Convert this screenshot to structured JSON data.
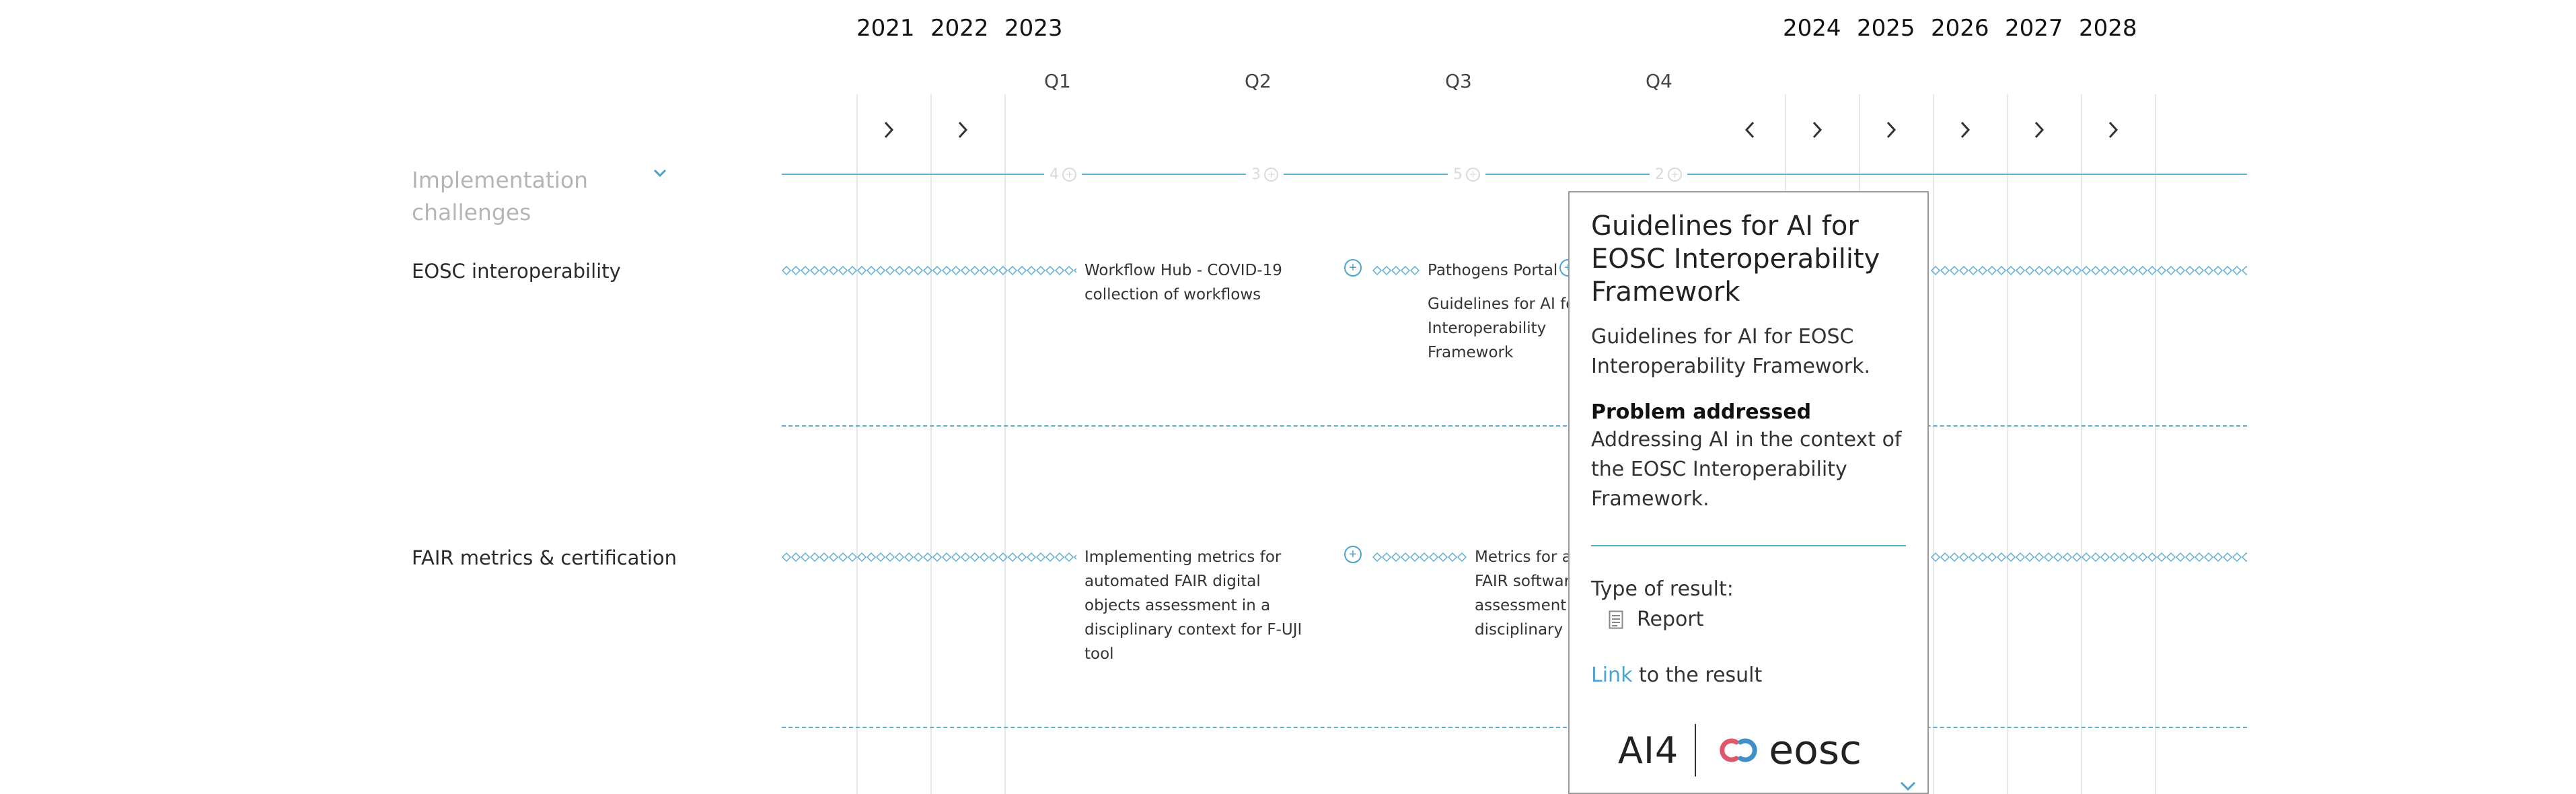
{
  "timeline": {
    "years_left": [
      "2021",
      "2022",
      "2023"
    ],
    "quarters": [
      "Q1",
      "Q2",
      "Q3",
      "Q4"
    ],
    "years_right": [
      "2024",
      "2025",
      "2026",
      "2027",
      "2028"
    ]
  },
  "group": {
    "label": "Implementation challenges",
    "markers": [
      "4",
      "3",
      "5",
      "2"
    ]
  },
  "rows": [
    {
      "label": "EOSC interoperability",
      "entries": [
        "Workflow Hub - COVID-19 collection of workflows",
        "Pathogens Portal",
        "Guidelines for AI for EOSC Interoperability Framework"
      ]
    },
    {
      "label": "FAIR metrics & certification",
      "entries": [
        "Implementing metrics for automated FAIR digital objects assessment in a disciplinary context for F-UJI tool",
        "Metrics for automated FAIR software assessment in a disciplinary context"
      ]
    }
  ],
  "popup": {
    "title": "Guidelines for AI for EOSC Interoperability Framework",
    "description": "Guidelines for AI for EOSC Interoperability Framework.",
    "problem_heading": "Problem addressed",
    "problem_text": "Addressing AI in the context of the EOSC Interoperability Framework.",
    "type_label": "Type of result:",
    "type_value": "Report",
    "link_word": "Link",
    "link_rest": " to the result",
    "logo_left": "AI4",
    "logo_right": "eosc"
  },
  "colors": {
    "accent": "#4ba3cf",
    "line": "#5aaed4",
    "logo_red": "#e0566b",
    "logo_blue": "#3f8fc9"
  },
  "icons": [
    "chevron-right-icon",
    "chevron-left-icon",
    "chevron-down-icon",
    "plus-circle-icon",
    "report-icon"
  ]
}
